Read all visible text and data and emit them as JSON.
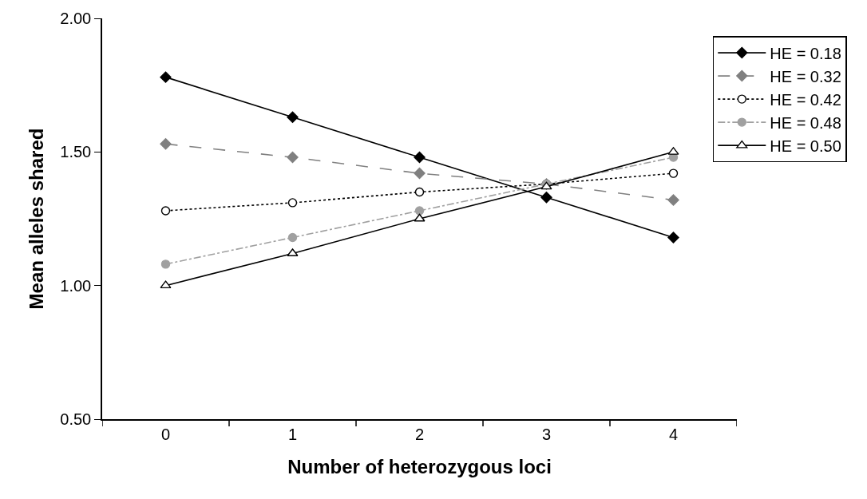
{
  "chart_data": {
    "type": "line",
    "xlabel": "Number of heterozygous loci",
    "ylabel": "Mean alleles shared",
    "categories": [
      "0",
      "1",
      "2",
      "3",
      "4"
    ],
    "ylim": [
      0.5,
      2.0
    ],
    "yticks": [
      {
        "value": 0.5,
        "label": "0.50"
      },
      {
        "value": 1.0,
        "label": "1.00"
      },
      {
        "value": 1.5,
        "label": "1.50"
      },
      {
        "value": 2.0,
        "label": "2.00"
      }
    ],
    "legend": "top right",
    "series": [
      {
        "name": "HE = 0.18",
        "color": "#000000",
        "line_style": "solid",
        "marker": "diamond",
        "values": [
          1.78,
          1.63,
          1.48,
          1.33,
          1.18
        ]
      },
      {
        "name": "HE = 0.32",
        "color": "#808080",
        "line_style": "dashed",
        "marker": "diamond",
        "values": [
          1.53,
          1.48,
          1.42,
          1.38,
          1.32
        ]
      },
      {
        "name": "HE = 0.42",
        "color": "#000000",
        "line_style": "dotted",
        "marker": "circle",
        "values": [
          1.28,
          1.31,
          1.35,
          1.38,
          1.42
        ]
      },
      {
        "name": "HE = 0.48",
        "color": "#a0a0a0",
        "line_style": "dashdot",
        "marker": "circle",
        "values": [
          1.08,
          1.18,
          1.28,
          1.38,
          1.48
        ]
      },
      {
        "name": "HE = 0.50",
        "color": "#000000",
        "line_style": "solid",
        "marker": "triangle",
        "values": [
          1.0,
          1.12,
          1.25,
          1.37,
          1.5
        ]
      }
    ]
  }
}
